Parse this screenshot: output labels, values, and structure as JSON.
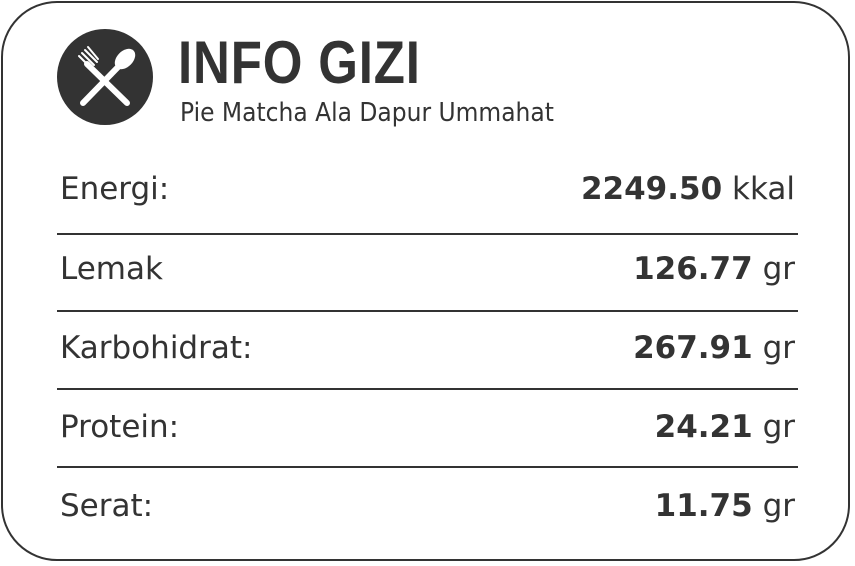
{
  "header": {
    "icon": "fork-spoon-icon",
    "title": "INFO GIZI",
    "subtitle": "Pie Matcha Ala Dapur Ummahat"
  },
  "rows": [
    {
      "label": "Energi:",
      "value": "2249.50",
      "unit": "kkal"
    },
    {
      "label": "Lemak",
      "value": "126.77",
      "unit": "gr"
    },
    {
      "label": "Karbohidrat:",
      "value": "267.91",
      "unit": "gr"
    },
    {
      "label": "Protein:",
      "value": "24.21",
      "unit": "gr"
    },
    {
      "label": "Serat:",
      "value": "11.75",
      "unit": "gr"
    }
  ],
  "colors": {
    "text": "#333333",
    "background": "#ffffff"
  }
}
